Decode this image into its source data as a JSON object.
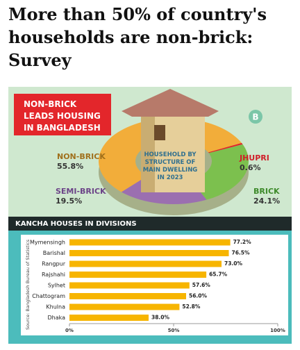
{
  "headline": "More than 50% of country's households are non-brick: Survey",
  "chart_data": [
    {
      "type": "pie",
      "banner": "NON-BRICK LEADS HOUSING IN BANGLADESH",
      "center_label": "HOUSEHOLD BY STRUCTURE OF MAIN DWELLING IN 2023",
      "categories": [
        "NON-BRICK",
        "SEMI-BRICK",
        "BRICK",
        "JHUPRI"
      ],
      "values": [
        55.8,
        19.5,
        24.1,
        0.6
      ],
      "value_labels": [
        "55.8%",
        "19.5%",
        "24.1%",
        "0.6%"
      ],
      "colors": [
        "#f2ad3a",
        "#9b6fb0",
        "#7cc04e",
        "#e0262a"
      ],
      "label_colors": [
        "#a0701c",
        "#6c4488",
        "#3d8a2a",
        "#d0202a"
      ]
    },
    {
      "type": "hbar",
      "title": "KANCHA HOUSES IN DIVISIONS",
      "categories": [
        "Mymensingh",
        "Barishal",
        "Rangpur",
        "Rajshahi",
        "Sylhet",
        "Chattogram",
        "Khulna",
        "Dhaka"
      ],
      "values": [
        77.2,
        76.5,
        73.0,
        65.7,
        57.6,
        56.0,
        52.8,
        38.0
      ],
      "value_labels": [
        "77.2%",
        "76.5%",
        "73.0%",
        "65.7%",
        "57.6%",
        "56.0%",
        "52.8%",
        "38.0%"
      ],
      "color": "#f7b500",
      "xlim": [
        0,
        100
      ],
      "xticks": [
        {
          "value": 0,
          "label": "0%"
        },
        {
          "value": 50,
          "label": "50%"
        },
        {
          "value": 100,
          "label": "100%"
        }
      ],
      "source": "Source: Bangladesh Bureau of Statistics"
    }
  ]
}
